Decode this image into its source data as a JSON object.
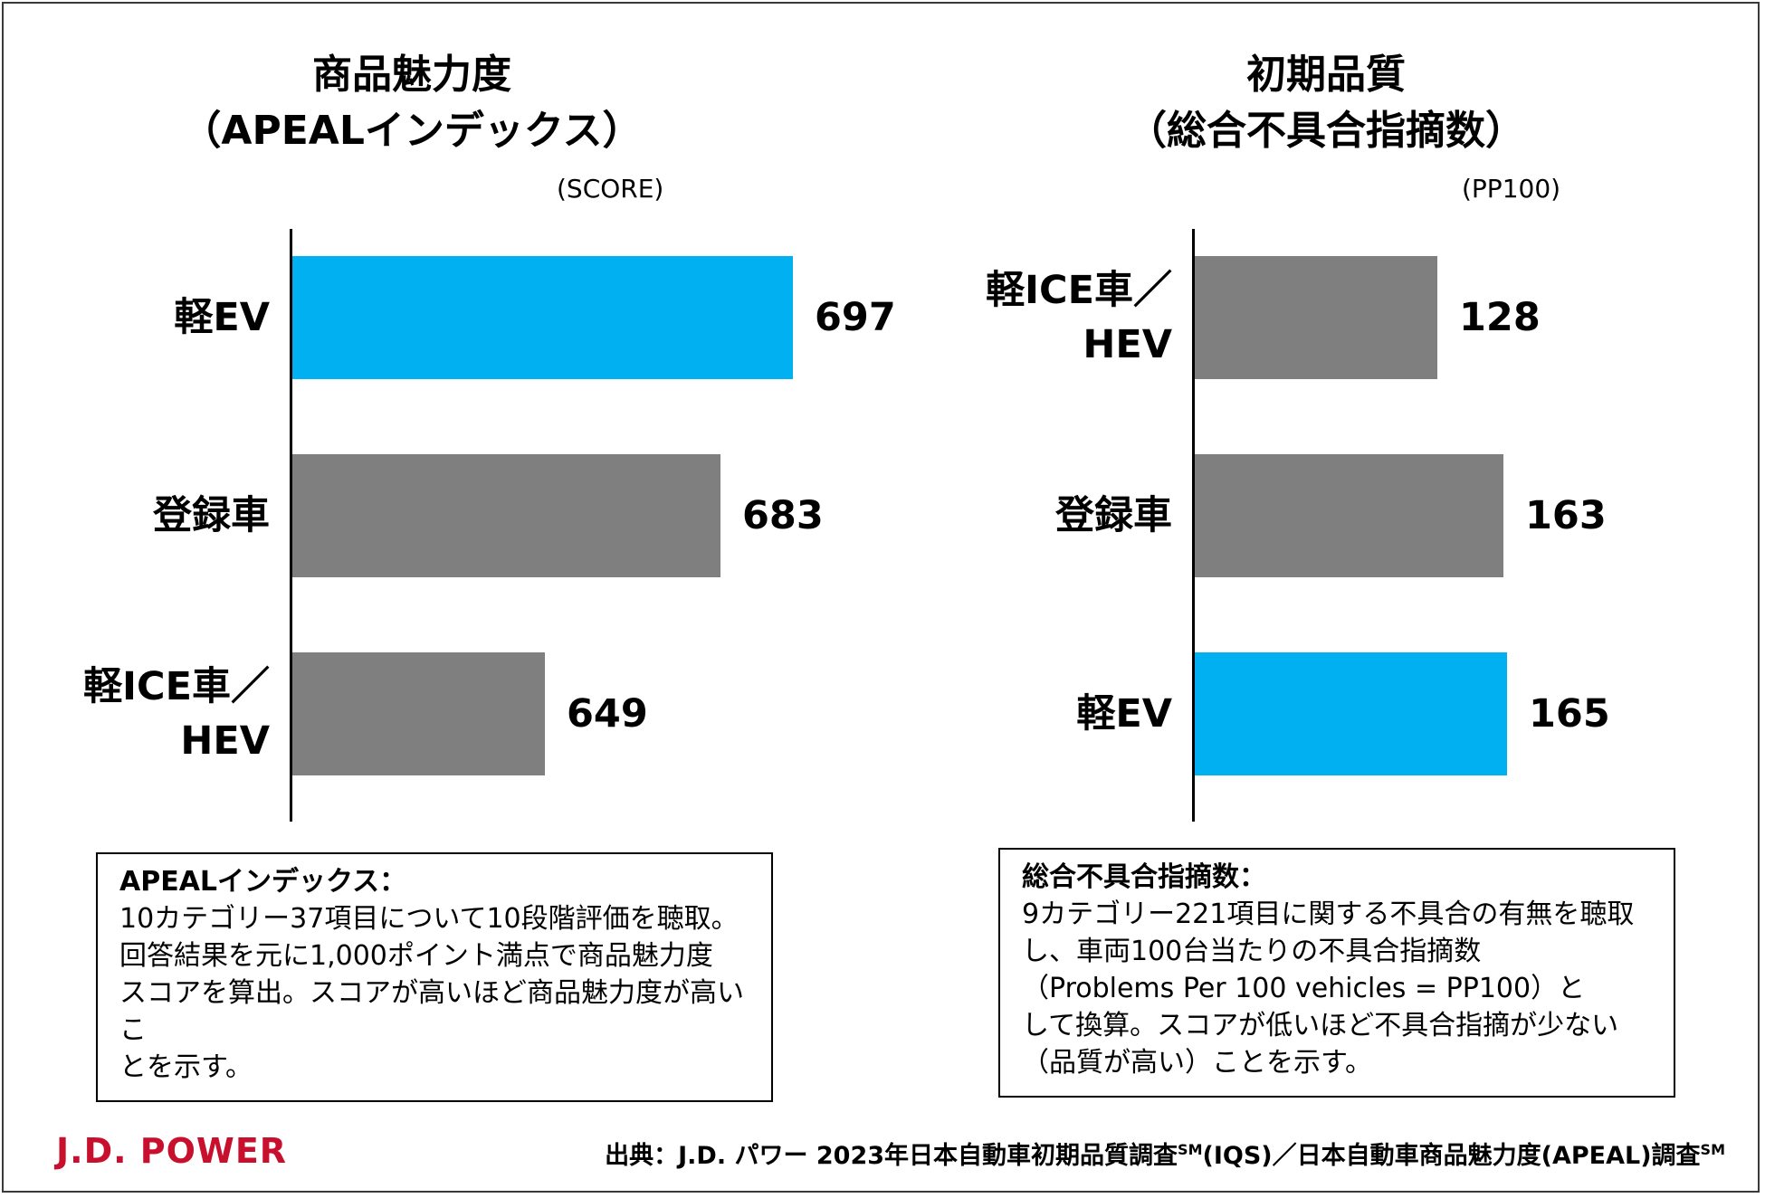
{
  "colors": {
    "highlight": "#00B0F0",
    "default": "#7F7F7F",
    "logo": "#C8102E"
  },
  "chart_data": [
    {
      "type": "bar",
      "orientation": "horizontal",
      "title_line1": "商品魅力度",
      "title_line2": "（APEALインデックス）",
      "unit": "(SCORE)",
      "xlim": [
        600,
        710
      ],
      "categories": [
        {
          "label_line1": "軽EV",
          "label_line2": "",
          "value": 697,
          "highlight": true
        },
        {
          "label_line1": "登録車",
          "label_line2": "",
          "value": 683,
          "highlight": false
        },
        {
          "label_line1": "軽ICE車／",
          "label_line2": "HEV",
          "value": 649,
          "highlight": false
        }
      ]
    },
    {
      "type": "bar",
      "orientation": "horizontal",
      "title_line1": "初期品質",
      "title_line2": "（総合不具合指摘数）",
      "unit": "(PP100)",
      "xlim": [
        0,
        170
      ],
      "categories": [
        {
          "label_line1": "軽ICE車／",
          "label_line2": "HEV",
          "value": 128,
          "highlight": false
        },
        {
          "label_line1": "登録車",
          "label_line2": "",
          "value": 163,
          "highlight": false
        },
        {
          "label_line1": "軽EV",
          "label_line2": "",
          "value": 165,
          "highlight": true
        }
      ]
    }
  ],
  "notes": [
    {
      "title": "APEALインデックス：",
      "lines": [
        "10カテゴリー37項目について10段階評価を聴取。",
        "回答結果を元に1,000ポイント満点で商品魅力度",
        "スコアを算出。スコアが高いほど商品魅力度が高いこ",
        "とを示す。"
      ]
    },
    {
      "title": "総合不具合指摘数：",
      "lines": [
        "9カテゴリー221項目に関する不具合の有無を聴取",
        "し、車両100台当たりの不具合指摘数",
        "（Problems Per 100 vehicles = PP100）と",
        "して換算。スコアが低いほど不具合指摘が少ない",
        "（品質が高い）ことを示す。"
      ]
    }
  ],
  "logo": "J.D. POWER",
  "source": {
    "part1": "出典：J.D. パワー 2023年日本自動車初期品質調査",
    "sup1": "SM",
    "part2": "(IQS)／日本自動車商品魅力度(APEAL)調査",
    "sup2": "SM"
  }
}
